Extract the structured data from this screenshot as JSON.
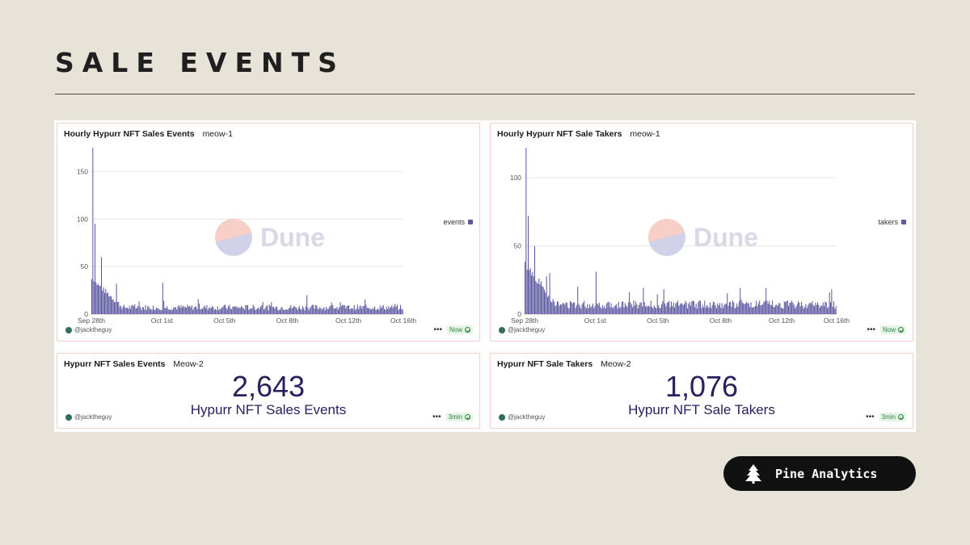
{
  "page": {
    "title": "SALE EVENTS"
  },
  "cards": {
    "events_chart": {
      "title": "Hourly Hypurr NFT Sales Events",
      "query": "meow-1",
      "author": "@jacktheguy",
      "status": "Now",
      "legend": "events",
      "watermark": "Dune"
    },
    "takers_chart": {
      "title": "Hourly Hypurr NFT Sale Takers",
      "query": "meow-1",
      "author": "@jacktheguy",
      "status": "Now",
      "legend": "takers",
      "watermark": "Dune"
    },
    "events_counter": {
      "title": "Hypurr NFT Sales Events",
      "query": "Meow-2",
      "author": "@jacktheguy",
      "status": "3min",
      "value": "2,643",
      "label": "Hypurr NFT Sales Events"
    },
    "takers_counter": {
      "title": "Hypurr NFT Sale Takers",
      "query": "Meow-2",
      "author": "@jacktheguy",
      "status": "3min",
      "value": "1,076",
      "label": "Hypurr NFT Sale Takers"
    }
  },
  "brand": {
    "name": "Pine Analytics",
    "icon": "pine-tree-icon"
  },
  "colors": {
    "bar": "#5b58a0",
    "counter": "#27205e",
    "status": "#2e8540",
    "background": "#e8e3d8"
  },
  "chart_data": [
    {
      "type": "bar",
      "title": "Hourly Hypurr NFT Sales Events",
      "series": [
        {
          "name": "events"
        }
      ],
      "x_ticks": [
        "Sep 28th",
        "Oct 1st",
        "Oct 5th",
        "Oct 8th",
        "Oct 12th",
        "Oct 16th"
      ],
      "y_ticks": [
        0,
        50,
        100,
        150
      ],
      "ylim": [
        0,
        175
      ],
      "grid": true,
      "legend": "right",
      "peaks": [
        {
          "x": "Sep 28th",
          "y": 175
        },
        {
          "x": "Sep 28th",
          "y": 95
        },
        {
          "x": "Sep 29th",
          "y": 60
        },
        {
          "x": "Sep 30th",
          "y": 32
        },
        {
          "x": "Oct 1st",
          "y": 33
        },
        {
          "x": "Oct 9th",
          "y": 20
        }
      ],
      "baseline": 4
    },
    {
      "type": "bar",
      "title": "Hourly Hypurr NFT Sale Takers",
      "series": [
        {
          "name": "takers"
        }
      ],
      "x_ticks": [
        "Sep 28th",
        "Oct 1st",
        "Oct 5th",
        "Oct 8th",
        "Oct 12th",
        "Oct 16th"
      ],
      "y_ticks": [
        0,
        50,
        100
      ],
      "ylim": [
        0,
        122
      ],
      "grid": true,
      "legend": "right",
      "peaks": [
        {
          "x": "Sep 28th",
          "y": 122
        },
        {
          "x": "Sep 28th",
          "y": 72
        },
        {
          "x": "Sep 29th",
          "y": 50
        },
        {
          "x": "Sep 30th",
          "y": 30
        },
        {
          "x": "Oct 1st",
          "y": 31
        },
        {
          "x": "Oct 4th",
          "y": 20
        },
        {
          "x": "Oct 9th",
          "y": 19
        }
      ],
      "baseline": 4
    }
  ]
}
